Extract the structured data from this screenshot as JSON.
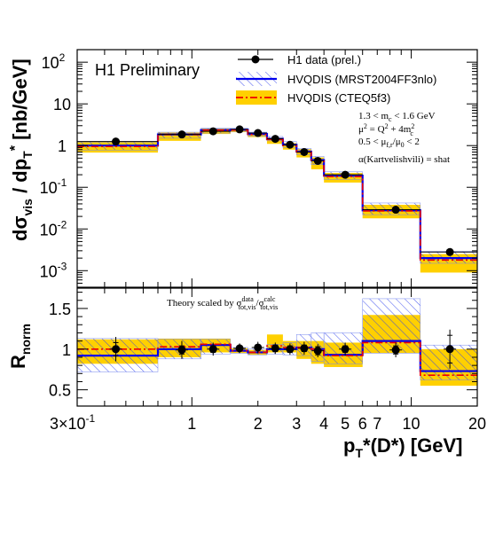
{
  "chart_data": [
    {
      "type": "line",
      "panel": "top",
      "title": "H1 Preliminary",
      "xlabel": "p_T*(D*) [GeV]",
      "ylabel": "dσ_vis / dp_T* [nb/GeV]",
      "xscale": "log",
      "yscale": "log",
      "xlim": [
        0.3,
        20
      ],
      "ylim": [
        0.0004,
        200
      ],
      "yticks": [
        {
          "value": 0.001,
          "base": "10",
          "exp": "-3"
        },
        {
          "value": 0.01,
          "base": "10",
          "exp": "-2"
        },
        {
          "value": 0.1,
          "base": "10",
          "exp": "-1"
        },
        {
          "value": 1,
          "base": "1",
          "exp": ""
        },
        {
          "value": 10,
          "base": "10",
          "exp": ""
        },
        {
          "value": 100,
          "base": "10",
          "exp": "2"
        }
      ],
      "legend_position": "top-right",
      "bins": [
        {
          "lo": 0.3,
          "hi": 0.7,
          "x": 0.45,
          "data": 1.25,
          "mrst": 1.0,
          "mrst_band": [
            0.78,
            1.22
          ],
          "cteq": 0.95,
          "cteq_band": [
            0.68,
            1.2
          ]
        },
        {
          "lo": 0.7,
          "hi": 1.1,
          "x": 0.9,
          "data": 1.85,
          "mrst": 1.85,
          "mrst_band": [
            1.5,
            2.1
          ],
          "cteq": 1.85,
          "cteq_band": [
            1.3,
            2.05
          ]
        },
        {
          "lo": 1.1,
          "hi": 1.5,
          "x": 1.25,
          "data": 2.2,
          "mrst": 2.35,
          "mrst_band": [
            2.0,
            2.6
          ],
          "cteq": 2.35,
          "cteq_band": [
            1.9,
            2.55
          ]
        },
        {
          "lo": 1.5,
          "hi": 1.8,
          "x": 1.65,
          "data": 2.45,
          "mrst": 2.4,
          "mrst_band": [
            2.2,
            2.6
          ],
          "cteq": 2.35,
          "cteq_band": [
            2.1,
            2.5
          ]
        },
        {
          "lo": 1.8,
          "hi": 2.2,
          "x": 2.0,
          "data": 2.0,
          "mrst": 1.9,
          "mrst_band": [
            1.7,
            2.1
          ],
          "cteq": 1.85,
          "cteq_band": [
            1.6,
            2.05
          ]
        },
        {
          "lo": 2.2,
          "hi": 2.6,
          "x": 2.4,
          "data": 1.45,
          "mrst": 1.45,
          "mrst_band": [
            1.3,
            1.65
          ],
          "cteq": 1.4,
          "cteq_band": [
            1.1,
            1.55
          ]
        },
        {
          "lo": 2.6,
          "hi": 3.0,
          "x": 2.8,
          "data": 1.05,
          "mrst": 1.05,
          "mrst_band": [
            0.9,
            1.25
          ],
          "cteq": 1.0,
          "cteq_band": [
            0.8,
            1.15
          ]
        },
        {
          "lo": 3.0,
          "hi": 3.5,
          "x": 3.25,
          "data": 0.7,
          "mrst": 0.72,
          "mrst_band": [
            0.6,
            0.85
          ],
          "cteq": 0.7,
          "cteq_band": [
            0.52,
            0.82
          ]
        },
        {
          "lo": 3.5,
          "hi": 4.0,
          "x": 3.75,
          "data": 0.43,
          "mrst": 0.45,
          "mrst_band": [
            0.35,
            0.55
          ],
          "cteq": 0.43,
          "cteq_band": [
            0.27,
            0.52
          ]
        },
        {
          "lo": 4.0,
          "hi": 6.0,
          "x": 5.0,
          "data": 0.2,
          "mrst": 0.19,
          "mrst_band": [
            0.155,
            0.235
          ],
          "cteq": 0.18,
          "cteq_band": [
            0.13,
            0.22
          ]
        },
        {
          "lo": 6.0,
          "hi": 11.0,
          "x": 8.5,
          "data": 0.029,
          "mrst": 0.028,
          "mrst_band": [
            0.022,
            0.042
          ],
          "cteq": 0.027,
          "cteq_band": [
            0.018,
            0.038
          ]
        },
        {
          "lo": 11.0,
          "hi": 20.0,
          "x": 15.0,
          "data": 0.0028,
          "mrst": 0.002,
          "mrst_band": [
            0.0015,
            0.0029
          ],
          "cteq": 0.0018,
          "cteq_band": [
            0.0009,
            0.0025
          ]
        }
      ],
      "legend": [
        {
          "label": "H1 data (prel.)",
          "kind": "data"
        },
        {
          "label": "HVQDIS (MRST2004FF3nlo)",
          "kind": "mrst"
        },
        {
          "label": "HVQDIS (CTEQ5f3)",
          "kind": "cteq"
        }
      ],
      "annotations": [
        {
          "pre": "1.3 < m",
          "sub": "c",
          "post": " < 1.6 GeV",
          "sub2": "",
          "post2": ""
        },
        {
          "pre": "μ",
          "sup": "2",
          "post": " = Q",
          "sup2": "2",
          "post2": " + 4m",
          "sup3": "2",
          "sub3": "c"
        },
        {
          "pre": "0.5 < μ",
          "sub": "f,r",
          "post": "/μ",
          "sub2": "0",
          "post2": " < 2"
        },
        {
          "pre": "α(Kartvelishvili) = shat"
        }
      ]
    },
    {
      "type": "line",
      "panel": "bottom",
      "ylabel": "R_norm",
      "xlabel": "p_T*(D*) [GeV]",
      "xscale": "log",
      "xlim": [
        0.3,
        20
      ],
      "ylim": [
        0.3,
        1.75
      ],
      "yticks": [
        0.5,
        1,
        1.5
      ],
      "ytick_labels": [
        "0.5",
        "1",
        "1.5"
      ],
      "xticks": [
        {
          "value": 0.3,
          "label": "3×10",
          "exp": "-1"
        },
        {
          "value": 1,
          "label": "1",
          "exp": ""
        },
        {
          "value": 2,
          "label": "2",
          "exp": ""
        },
        {
          "value": 3,
          "label": "3",
          "exp": ""
        },
        {
          "value": 4,
          "label": "4",
          "exp": ""
        },
        {
          "value": 5,
          "label": "5",
          "exp": ""
        },
        {
          "value": 6,
          "label": "6",
          "exp": ""
        },
        {
          "value": 7,
          "label": "7",
          "exp": ""
        },
        {
          "value": 10,
          "label": "10",
          "exp": ""
        },
        {
          "value": 20,
          "label": "20",
          "exp": ""
        }
      ],
      "note": "Theory scaled by σ^data_tot,vis/σ^calc_tot,vis",
      "bins": [
        {
          "lo": 0.3,
          "hi": 0.7,
          "x": 0.45,
          "data": 1.0,
          "err_tot": 0.15,
          "err_stat": 0.08,
          "mrst": 0.92,
          "mrst_band": [
            0.72,
            1.13
          ],
          "cteq": 1.0,
          "cteq_band": [
            0.82,
            1.12
          ]
        },
        {
          "lo": 0.7,
          "hi": 1.1,
          "x": 0.9,
          "data": 0.99,
          "err_tot": 0.11,
          "err_stat": 0.05,
          "mrst": 1.0,
          "mrst_band": [
            0.88,
            1.12
          ],
          "cteq": 1.03,
          "cteq_band": [
            0.9,
            1.13
          ]
        },
        {
          "lo": 1.1,
          "hi": 1.5,
          "x": 1.25,
          "data": 1.0,
          "err_tot": 0.08,
          "err_stat": 0.04,
          "mrst": 1.05,
          "mrst_band": [
            0.94,
            1.12
          ],
          "cteq": 1.06,
          "cteq_band": [
            0.96,
            1.13
          ]
        },
        {
          "lo": 1.5,
          "hi": 1.8,
          "x": 1.65,
          "data": 1.01,
          "err_tot": 0.06,
          "err_stat": 0.03,
          "mrst": 0.98,
          "mrst_band": [
            0.95,
            1.02
          ],
          "cteq": 0.98,
          "cteq_band": [
            0.95,
            1.01
          ]
        },
        {
          "lo": 1.8,
          "hi": 2.2,
          "x": 2.0,
          "data": 1.02,
          "err_tot": 0.07,
          "err_stat": 0.03,
          "mrst": 0.96,
          "mrst_band": [
            0.93,
            1.0
          ],
          "cteq": 0.96,
          "cteq_band": [
            0.93,
            0.99
          ]
        },
        {
          "lo": 2.2,
          "hi": 2.6,
          "x": 2.4,
          "data": 1.01,
          "err_tot": 0.07,
          "err_stat": 0.04,
          "mrst": 1.0,
          "mrst_band": [
            0.94,
            1.06
          ],
          "cteq": 1.04,
          "cteq_band": [
            0.96,
            1.18
          ]
        },
        {
          "lo": 2.6,
          "hi": 3.0,
          "x": 2.8,
          "data": 1.0,
          "err_tot": 0.07,
          "err_stat": 0.04,
          "mrst": 1.0,
          "mrst_band": [
            0.93,
            1.08
          ],
          "cteq": 1.02,
          "cteq_band": [
            0.96,
            1.1
          ]
        },
        {
          "lo": 3.0,
          "hi": 3.5,
          "x": 3.25,
          "data": 1.01,
          "err_tot": 0.08,
          "err_stat": 0.04,
          "mrst": 1.02,
          "mrst_band": [
            0.92,
            1.18
          ],
          "cteq": 1.02,
          "cteq_band": [
            0.88,
            1.1
          ]
        },
        {
          "lo": 3.5,
          "hi": 4.0,
          "x": 3.75,
          "data": 0.98,
          "err_tot": 0.08,
          "err_stat": 0.05,
          "mrst": 1.0,
          "mrst_band": [
            0.85,
            1.2
          ],
          "cteq": 1.0,
          "cteq_band": [
            0.82,
            1.1
          ]
        },
        {
          "lo": 4.0,
          "hi": 6.0,
          "x": 5.0,
          "data": 1.0,
          "err_tot": 0.08,
          "err_stat": 0.04,
          "mrst": 0.93,
          "mrst_band": [
            0.82,
            1.2
          ],
          "cteq": 0.92,
          "cteq_band": [
            0.78,
            1.08
          ]
        },
        {
          "lo": 6.0,
          "hi": 11.0,
          "x": 8.5,
          "data": 0.99,
          "err_tot": 0.09,
          "err_stat": 0.05,
          "mrst": 1.1,
          "mrst_band": [
            0.95,
            1.62
          ],
          "cteq": 1.08,
          "cteq_band": [
            0.95,
            1.42
          ]
        },
        {
          "lo": 11.0,
          "hi": 20.0,
          "x": 15.0,
          "data": 1.0,
          "err_tot": 0.24,
          "err_stat": 0.17,
          "mrst": 0.73,
          "mrst_band": [
            0.62,
            1.05
          ],
          "cteq": 0.68,
          "cteq_band": [
            0.55,
            1.0
          ]
        }
      ]
    }
  ],
  "colors": {
    "data": "#000000",
    "mrst_line": "#0000ee",
    "mrst_hatch": "#3344ee",
    "cteq_line": "#ee0000",
    "cteq_band": "#ffd000",
    "frame": "#000000"
  }
}
